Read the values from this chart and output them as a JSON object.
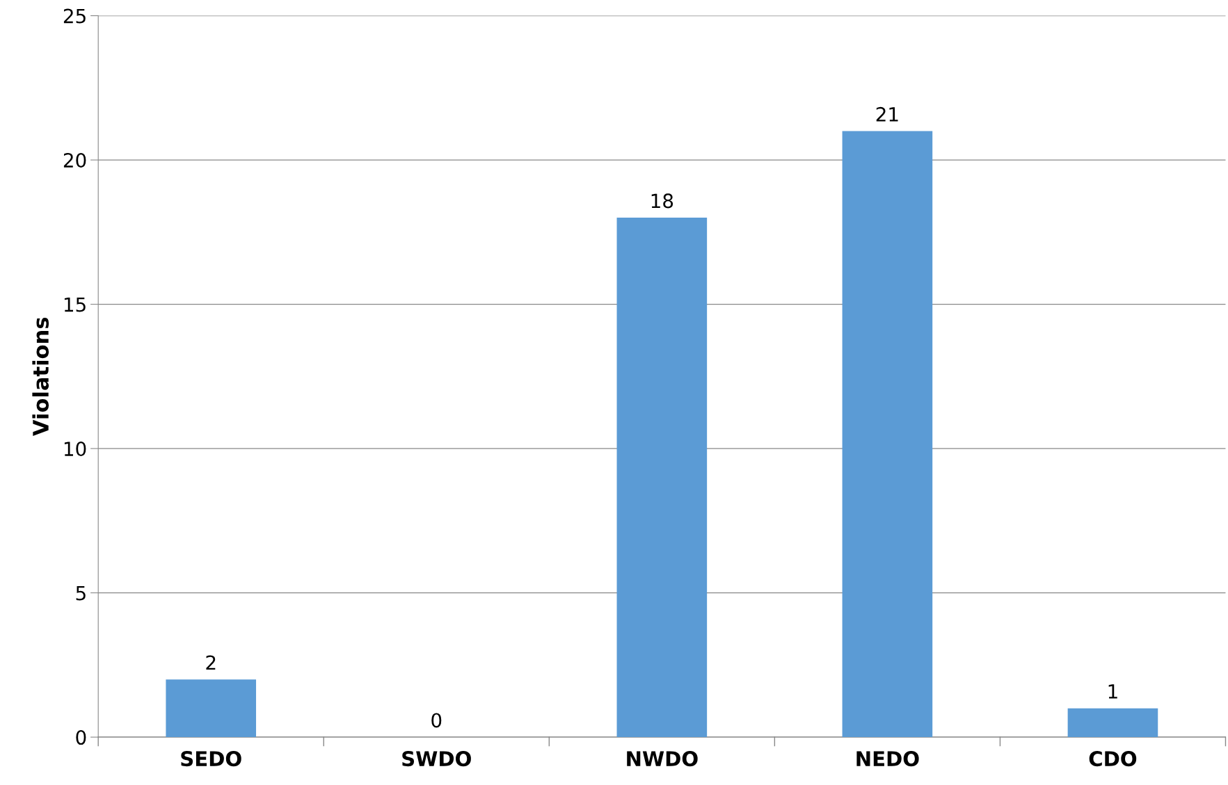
{
  "chart_data": {
    "type": "bar",
    "ylabel": "Violations",
    "categories": [
      "SEDO",
      "SWDO",
      "NWDO",
      "NEDO",
      "CDO"
    ],
    "values": [
      2,
      0,
      18,
      21,
      1
    ],
    "color": "#5b9bd5",
    "ylim": [
      0,
      25
    ],
    "yticks": [
      0,
      5,
      10,
      15,
      20,
      25
    ],
    "grid": "y",
    "data_labels": true
  }
}
